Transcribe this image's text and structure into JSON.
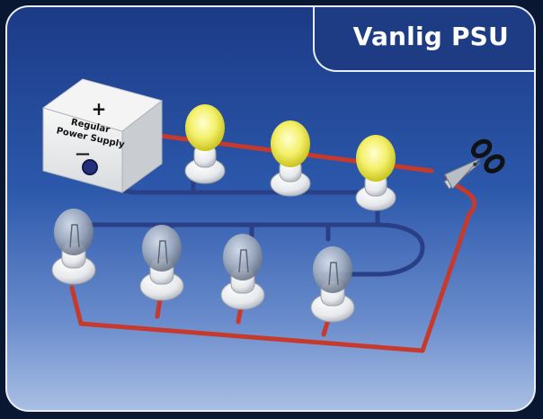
{
  "title": "Vanlig PSU",
  "power_supply": {
    "plus": "+",
    "label_line1": "Regular",
    "label_line2": "Power Supply",
    "minus": "—"
  },
  "colors": {
    "background_top": "#1b3a86",
    "background_bottom": "#a9bfe4",
    "positive_wire": "#c63a2e",
    "negative_wire": "#2b3f86",
    "lit_bulb": "#f4f06a",
    "unlit_bulb": "#9aa6b8"
  },
  "bulbs": {
    "lit": 3,
    "unlit": 4
  },
  "icons": [
    "scissors-icon",
    "lit-bulb-icon",
    "unlit-bulb-icon",
    "power-supply-box"
  ]
}
